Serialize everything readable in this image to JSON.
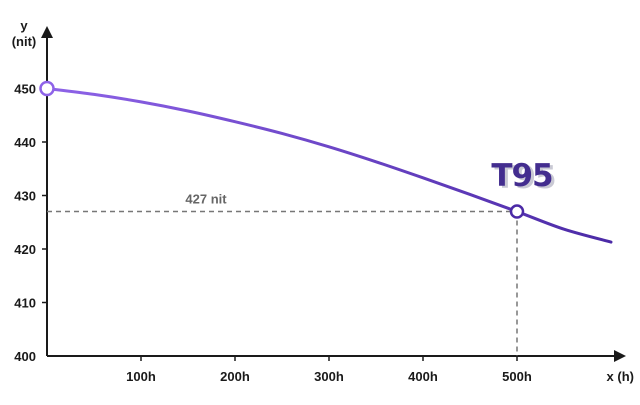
{
  "chart_data": {
    "type": "line",
    "x": [
      0,
      50,
      100,
      150,
      200,
      250,
      300,
      350,
      400,
      450,
      500,
      550,
      600
    ],
    "y": [
      450,
      448.9,
      447.5,
      445.8,
      443.8,
      441.6,
      439.1,
      436.3,
      433.3,
      430.2,
      427,
      423.7,
      421.3
    ],
    "xlim": [
      0,
      620
    ],
    "ylim": [
      400,
      460
    ],
    "x_ticks": [
      100,
      200,
      300,
      400,
      500
    ],
    "x_tick_labels": [
      "100h",
      "200h",
      "300h",
      "400h",
      "500h"
    ],
    "y_ticks": [
      400,
      410,
      420,
      430,
      440,
      450
    ],
    "y_tick_labels": [
      "400",
      "410",
      "420",
      "430",
      "440",
      "450"
    ],
    "xlabel": "x (h)",
    "ylabel_line1": "y",
    "ylabel_line2": "(nit)",
    "grid": false,
    "annotations": {
      "start_point": {
        "x": 0,
        "y": 450
      },
      "t95_point": {
        "x": 500,
        "y": 427
      },
      "t95_label": "T95",
      "value_label": "427 nit"
    },
    "colors": {
      "line_start": "#8e63e8",
      "line_end": "#4b2aa6",
      "marker_fill": "#ffffff",
      "guide": "#777777",
      "axis": "#1a1a1a",
      "t95_text": "#432d8f",
      "t95_shadow": "#c9c9d4"
    }
  }
}
